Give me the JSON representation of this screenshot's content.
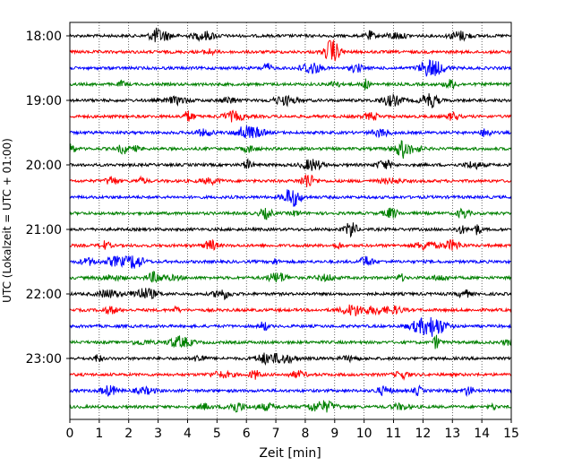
{
  "chart_data": {
    "type": "line",
    "title": "",
    "xlabel": "Zeit  [min]",
    "ylabel": "UTC (Lokalzeit = UTC + 01:00)",
    "xlim": [
      0,
      15
    ],
    "x_ticks": [
      "0",
      "1",
      "2",
      "3",
      "4",
      "5",
      "6",
      "7",
      "8",
      "9",
      "10",
      "11",
      "12",
      "13",
      "14",
      "15"
    ],
    "grid": {
      "x": true,
      "y": false,
      "style": "dotted"
    },
    "y_ticks": [
      "18:00",
      "19:00",
      "20:00",
      "21:00",
      "22:00",
      "23:00"
    ],
    "trace_colors": [
      "#000000",
      "#ff0000",
      "#0000ff",
      "#008000"
    ],
    "traces": [
      {
        "start": "18:00",
        "color": "#000000"
      },
      {
        "start": "18:15",
        "color": "#ff0000"
      },
      {
        "start": "18:30",
        "color": "#0000ff"
      },
      {
        "start": "18:45",
        "color": "#008000"
      },
      {
        "start": "19:00",
        "color": "#000000"
      },
      {
        "start": "19:15",
        "color": "#ff0000"
      },
      {
        "start": "19:30",
        "color": "#0000ff"
      },
      {
        "start": "19:45",
        "color": "#008000"
      },
      {
        "start": "20:00",
        "color": "#000000"
      },
      {
        "start": "20:15",
        "color": "#ff0000"
      },
      {
        "start": "20:30",
        "color": "#0000ff"
      },
      {
        "start": "20:45",
        "color": "#008000"
      },
      {
        "start": "21:00",
        "color": "#000000"
      },
      {
        "start": "21:15",
        "color": "#ff0000"
      },
      {
        "start": "21:30",
        "color": "#0000ff"
      },
      {
        "start": "21:45",
        "color": "#008000"
      },
      {
        "start": "22:00",
        "color": "#000000"
      },
      {
        "start": "22:15",
        "color": "#ff0000"
      },
      {
        "start": "22:30",
        "color": "#0000ff"
      },
      {
        "start": "22:45",
        "color": "#008000"
      },
      {
        "start": "23:00",
        "color": "#000000"
      },
      {
        "start": "23:15",
        "color": "#ff0000"
      },
      {
        "start": "23:30",
        "color": "#0000ff"
      },
      {
        "start": "23:45",
        "color": "#008000"
      }
    ]
  }
}
